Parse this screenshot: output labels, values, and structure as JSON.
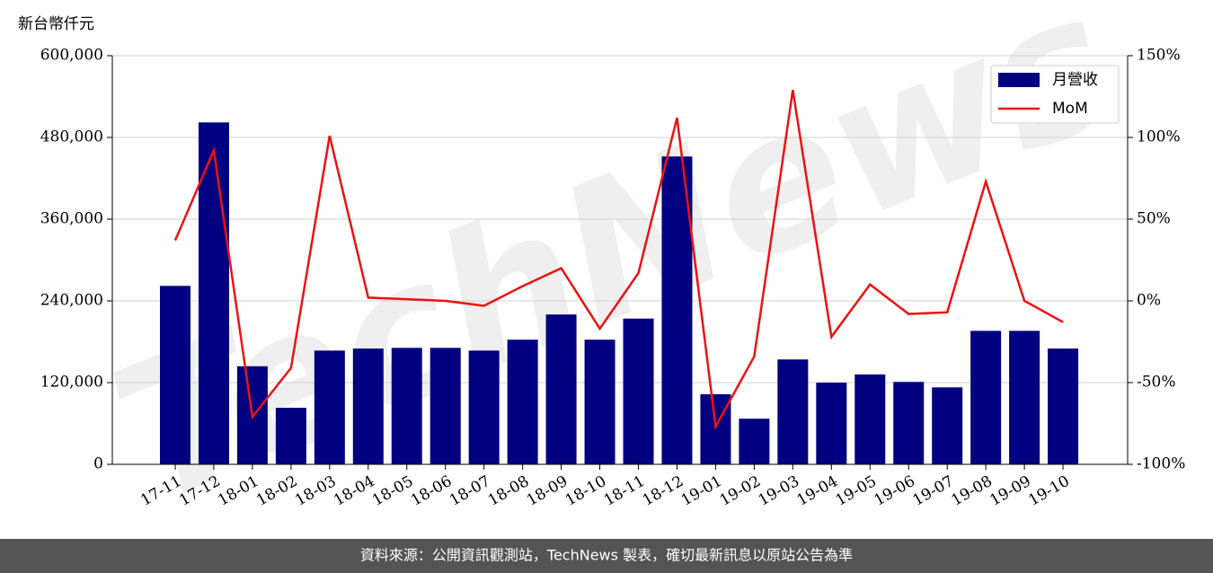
{
  "chart_data": {
    "type": "bar-line",
    "y_label": "新台幣仟元",
    "watermark": "TechNews",
    "footer": "資料來源：公開資訊觀測站，TechNews 製表，確切最新訊息以原站公告為準",
    "categories": [
      "17-11",
      "17-12",
      "18-01",
      "18-02",
      "18-03",
      "18-04",
      "18-05",
      "18-06",
      "18-07",
      "18-08",
      "18-09",
      "18-10",
      "18-11",
      "18-12",
      "19-01",
      "19-02",
      "19-03",
      "19-04",
      "19-05",
      "19-06",
      "19-07",
      "19-08",
      "19-09",
      "19-10"
    ],
    "series": [
      {
        "name": "月營收",
        "type": "bar",
        "color": "#000080",
        "values": [
          262000,
          502000,
          144000,
          83000,
          167000,
          170000,
          171000,
          171000,
          167000,
          183000,
          220000,
          183000,
          214000,
          452000,
          103000,
          67000,
          154000,
          120000,
          132000,
          121000,
          113000,
          196000,
          196000,
          170000
        ]
      },
      {
        "name": "MoM",
        "type": "line",
        "axis": "y2",
        "color": "#ee1111",
        "values": [
          37,
          92,
          -71,
          -41,
          101,
          2,
          1,
          0,
          -3,
          9,
          20,
          -17,
          17,
          112,
          -77,
          -34,
          129,
          -22,
          10,
          -8,
          -7,
          73,
          0,
          -13
        ]
      }
    ],
    "ylim": [
      0,
      600000
    ],
    "yticks": [
      {
        "value": 0,
        "label": "0"
      },
      {
        "value": 120000,
        "label": "120,000"
      },
      {
        "value": 240000,
        "label": "240,000"
      },
      {
        "value": 360000,
        "label": "360,000"
      },
      {
        "value": 480000,
        "label": "480,000"
      },
      {
        "value": 600000,
        "label": "600,000"
      }
    ],
    "y2lim": [
      -100,
      150
    ],
    "y2ticks": [
      {
        "value": -100,
        "label": "-100%"
      },
      {
        "value": -50,
        "label": "-50%"
      },
      {
        "value": 0,
        "label": "0%"
      },
      {
        "value": 50,
        "label": "50%"
      },
      {
        "value": 100,
        "label": "100%"
      },
      {
        "value": 150,
        "label": "150%"
      }
    ],
    "grid": true,
    "legend": "upper right"
  }
}
